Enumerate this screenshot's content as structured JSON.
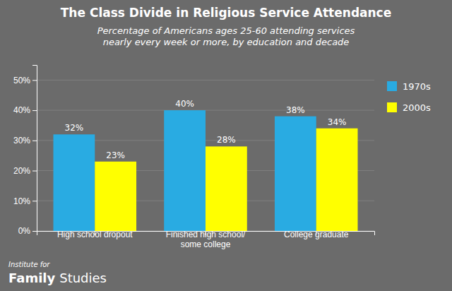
{
  "chart_data": {
    "type": "bar",
    "title": "The Class Divide in Religious Service Attendance",
    "subtitle": "Percentage of Americans ages 25-60 attending services\nnearly every week or more, by education and decade",
    "categories": [
      "High school dropout",
      "Finished high school/\nsome college",
      "College graduate"
    ],
    "series": [
      {
        "name": "1970s",
        "color": "#29ABE2",
        "values": [
          32,
          40,
          38
        ],
        "value_labels": [
          "32%",
          "40%",
          "38%"
        ]
      },
      {
        "name": "2000s",
        "color": "#FFFF00",
        "values": [
          23,
          28,
          34
        ],
        "value_labels": [
          "23%",
          "28%",
          "34%"
        ]
      }
    ],
    "ylim": [
      0,
      55
    ],
    "yticks": [
      {
        "value": 0,
        "label": "0%"
      },
      {
        "value": 10,
        "label": "10%"
      },
      {
        "value": 20,
        "label": "20%"
      },
      {
        "value": 30,
        "label": "30%"
      },
      {
        "value": 40,
        "label": "40%"
      },
      {
        "value": 50,
        "label": "50%"
      }
    ],
    "grid": true,
    "legend": "right",
    "data_labels": true,
    "annotations": [
      "Institute for",
      "Family",
      "Studies"
    ]
  }
}
